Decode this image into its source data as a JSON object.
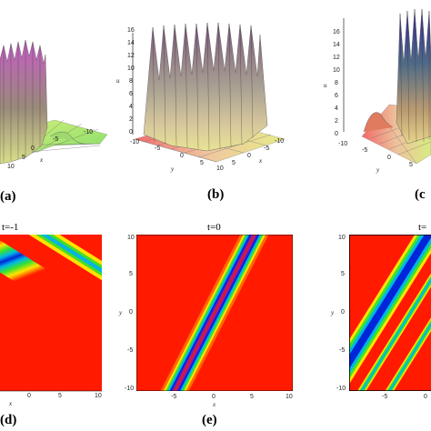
{
  "panels_top": [
    {
      "id": "a",
      "label": "(a)",
      "ticks_z": [],
      "ticks_x": [
        "10",
        "5",
        "0",
        "-5",
        "-10"
      ],
      "ticks_y": [],
      "axis_z": "",
      "axis_x": "x",
      "axis_y": ""
    },
    {
      "id": "b",
      "label": "(b)",
      "ticks_z": [
        "16",
        "14",
        "12",
        "10",
        "8",
        "6",
        "4",
        "2",
        "0"
      ],
      "ticks_x": [
        "5",
        "0",
        "-5",
        "-10"
      ],
      "ticks_y": [
        "-10",
        "-5",
        "0",
        "5",
        "10"
      ],
      "axis_z": "u",
      "axis_x": "x",
      "axis_y": "y"
    },
    {
      "id": "c",
      "label": "(c",
      "ticks_z": [
        "16",
        "14",
        "12",
        "10",
        "8",
        "6",
        "4",
        "2",
        "0"
      ],
      "ticks_x": [],
      "ticks_y": [
        "-10",
        "-5",
        "0",
        "5"
      ],
      "axis_z": "u",
      "axis_x": "",
      "axis_y": "y"
    }
  ],
  "panels_bottom": [
    {
      "id": "d",
      "label": "(d)",
      "title": "t=-1",
      "ticks_x": [
        "0",
        "5",
        "10"
      ],
      "ticks_y": [],
      "axis_x": "x",
      "axis_y": ""
    },
    {
      "id": "e",
      "label": "(e)",
      "title": "t=0",
      "ticks_x": [
        "-5",
        "0",
        "5",
        "10"
      ],
      "ticks_y": [
        "10",
        "5",
        "0",
        "-5",
        "-10"
      ],
      "axis_x": "x",
      "axis_y": "y"
    },
    {
      "id": "f",
      "label": "",
      "title": "t=",
      "ticks_x": [
        "-5",
        "0"
      ],
      "ticks_y": [
        "10",
        "5",
        "0",
        "-5",
        "-10"
      ],
      "axis_x": "",
      "axis_y": "y"
    }
  ],
  "colors": {
    "bg": "#ff1a00",
    "band": [
      "#ffe400",
      "#39e32f",
      "#00b6e6",
      "#0026d9",
      "#7a1cc0"
    ]
  }
}
